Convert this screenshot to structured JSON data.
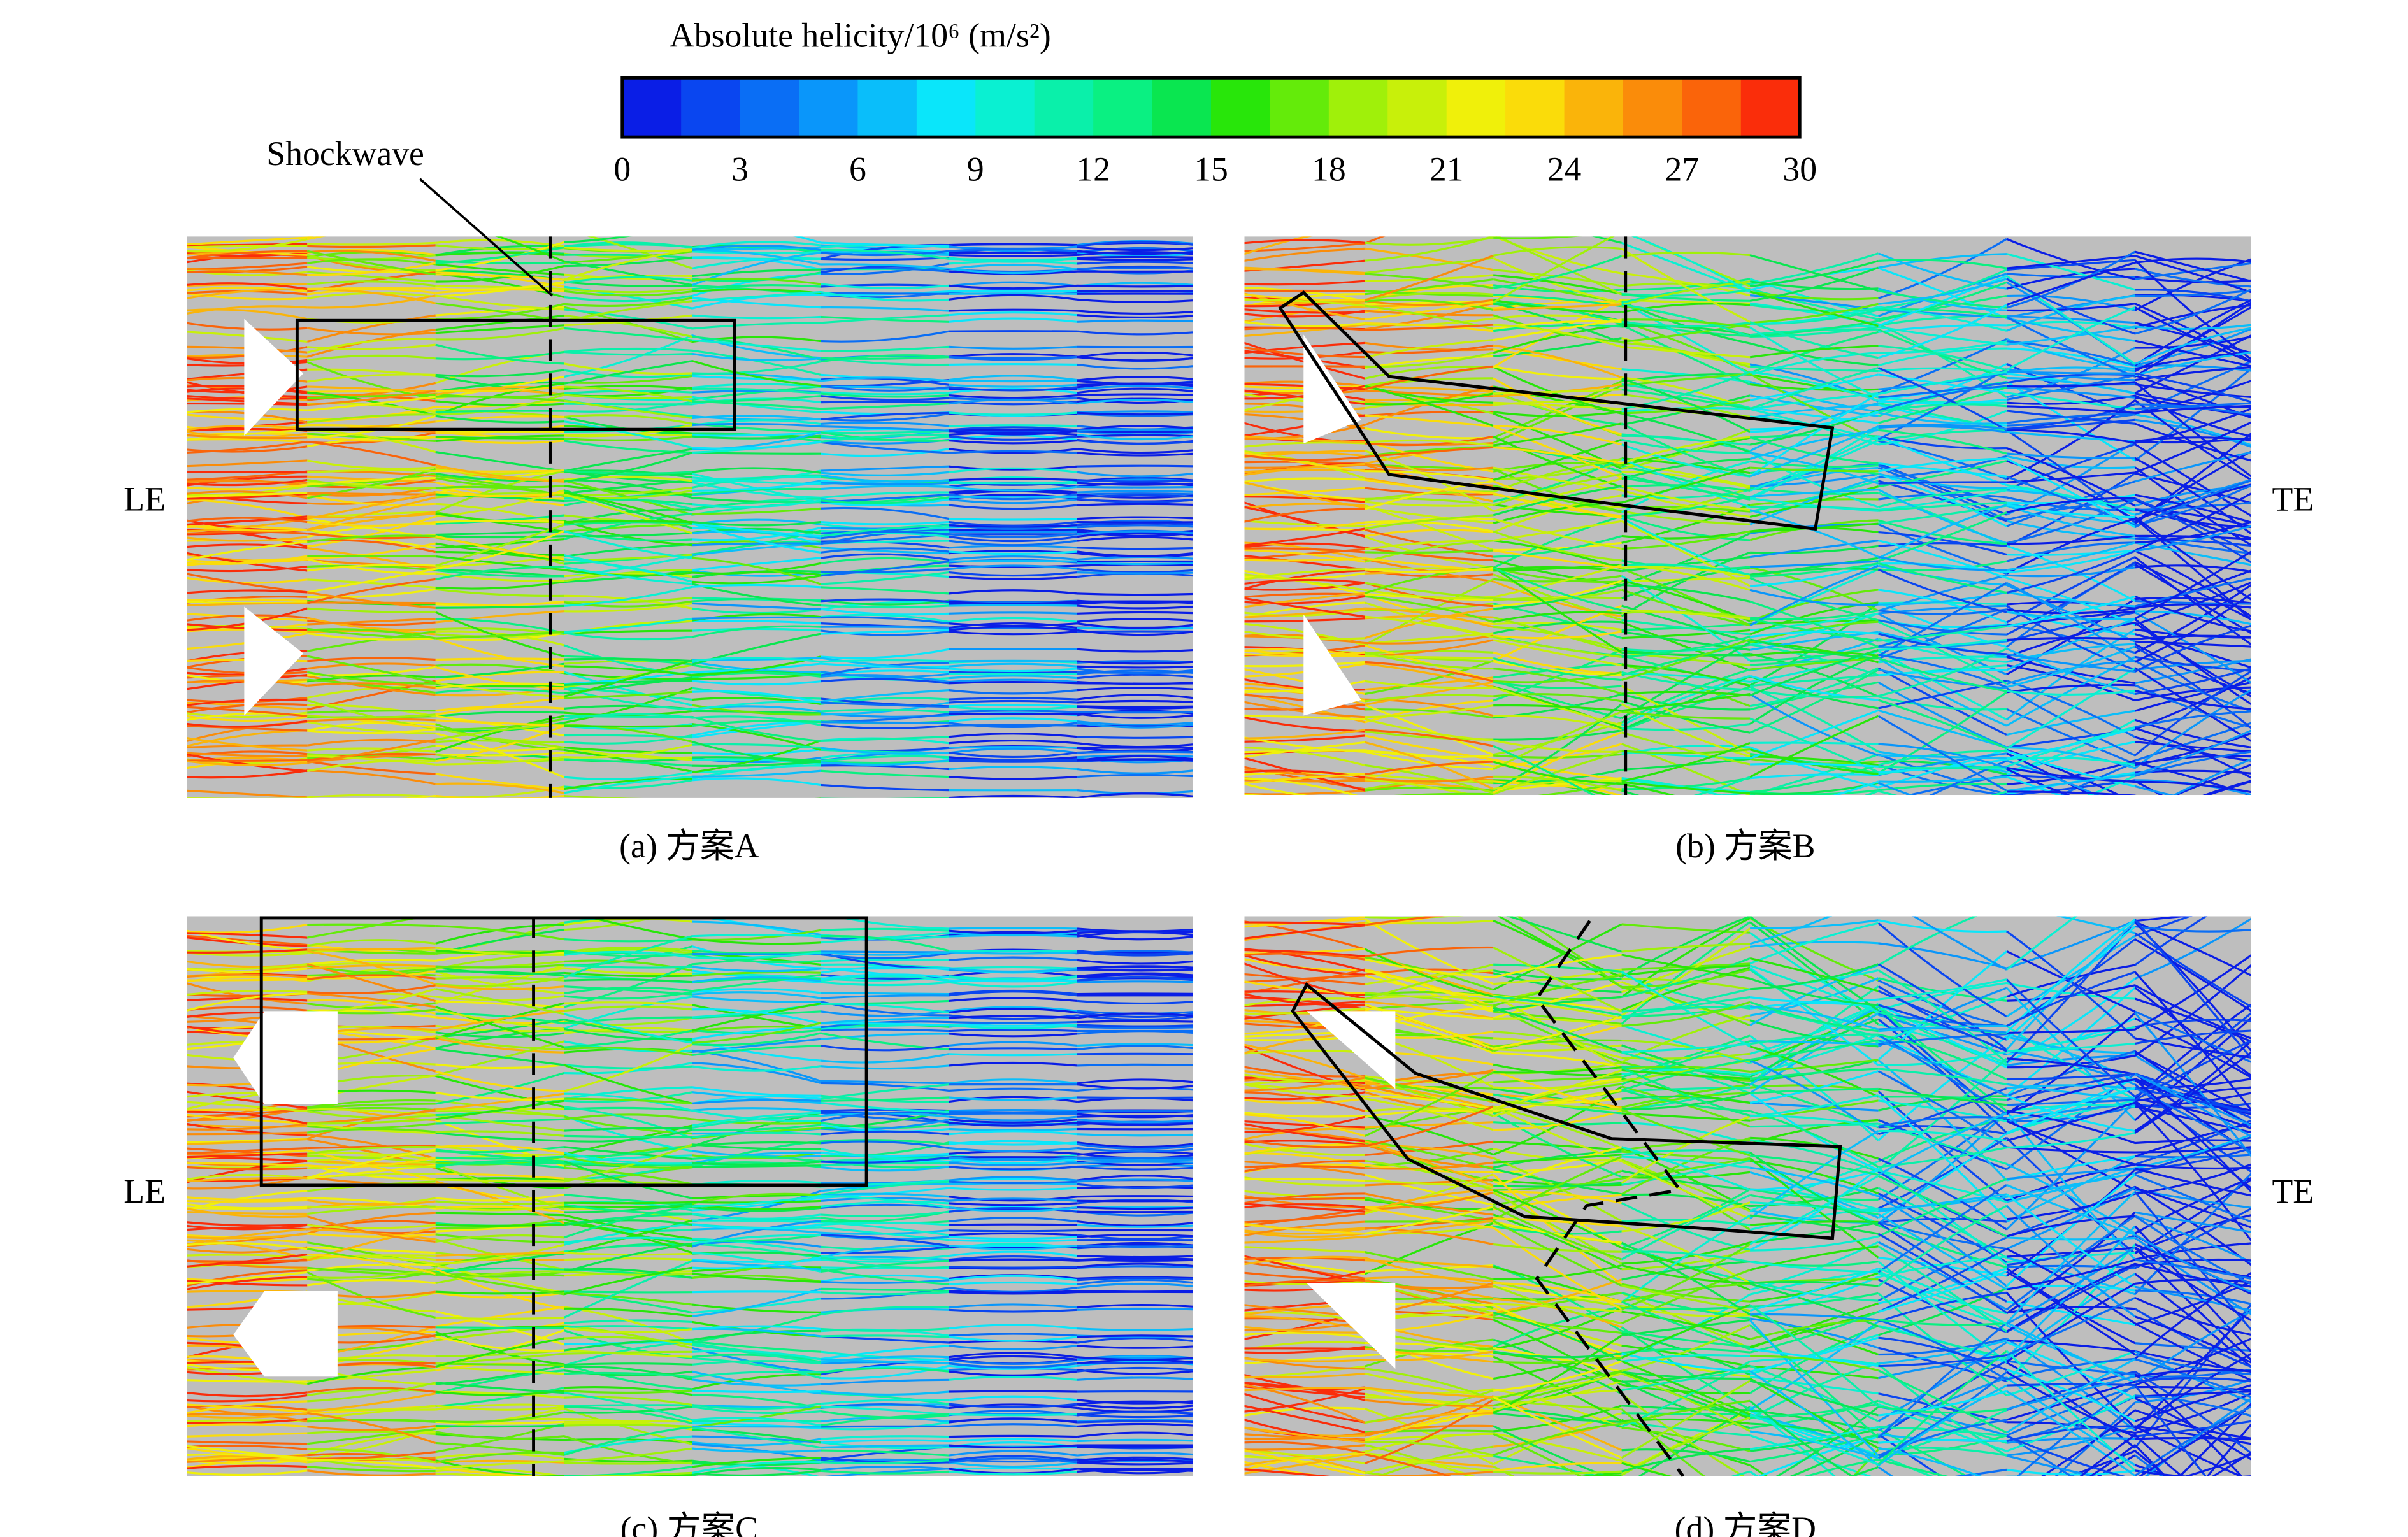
{
  "colorbar": {
    "title": "Absolute helicity/10⁶ (m/s²)",
    "lim": [
      0,
      30
    ],
    "ticks": [
      0,
      3,
      6,
      9,
      12,
      15,
      18,
      21,
      24,
      27,
      30
    ],
    "colors": [
      "#0a1ee6",
      "#0a46f0",
      "#0a6ef5",
      "#0a96fa",
      "#0abefa",
      "#0ae6fa",
      "#0af0d2",
      "#0af0aa",
      "#0af082",
      "#0ae650",
      "#28e60a",
      "#64eb0a",
      "#a0f00a",
      "#c8f00a",
      "#f0f00a",
      "#fadc0a",
      "#fab40a",
      "#fa8c0a",
      "#fa640a",
      "#fa2d0a"
    ]
  },
  "annotation": "Shockwave",
  "rows": [
    {
      "left": "LE",
      "right": "TE"
    },
    {
      "left": "LE",
      "right": "TE"
    }
  ],
  "panels": [
    {
      "caption": "(a) 方案A"
    },
    {
      "caption": "(b) 方案B"
    },
    {
      "caption": "(c) 方案C"
    },
    {
      "caption": "(d) 方案D"
    }
  ]
}
